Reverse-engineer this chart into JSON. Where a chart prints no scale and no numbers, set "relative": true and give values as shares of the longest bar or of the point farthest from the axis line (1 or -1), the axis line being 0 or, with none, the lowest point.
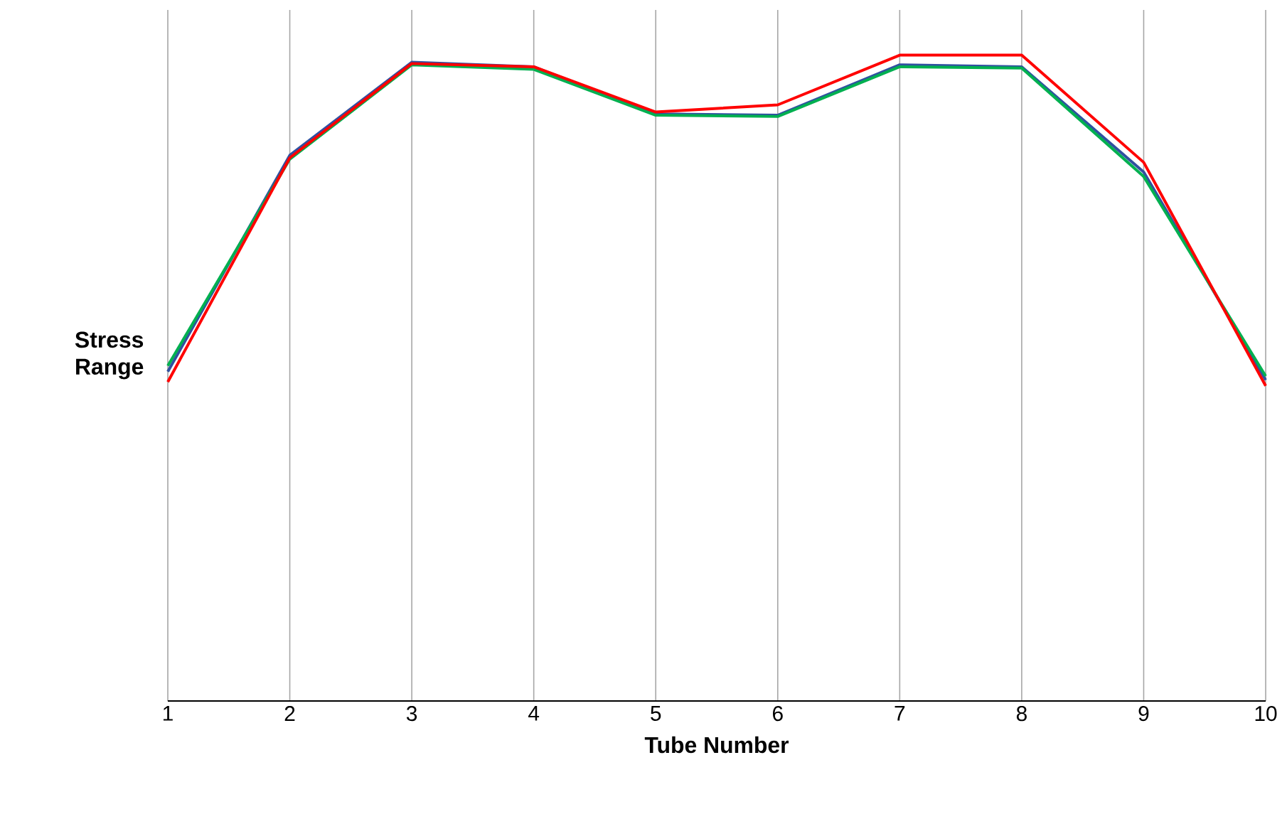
{
  "chart_data": {
    "type": "line",
    "xlabel": "Tube Number",
    "ylabel": "Stress Range",
    "relative": true,
    "grid": true,
    "marker": "none",
    "line_style": "solid",
    "x": [
      1,
      2,
      3,
      4,
      5,
      6,
      7,
      8,
      9,
      10
    ],
    "xlim": [
      1,
      10
    ],
    "xticks": [
      1,
      2,
      3,
      4,
      5,
      6,
      7,
      8,
      9,
      10
    ],
    "series": [
      {
        "color": "#3050a0",
        "values": [
          0.51,
          0.845,
          0.989,
          0.982,
          0.909,
          0.907,
          0.985,
          0.982,
          0.819,
          0.497
        ]
      },
      {
        "color": "#00b050",
        "values": [
          0.519,
          0.839,
          0.985,
          0.978,
          0.907,
          0.905,
          0.982,
          0.98,
          0.812,
          0.503
        ]
      },
      {
        "color": "#ff0000",
        "values": [
          0.494,
          0.841,
          0.987,
          0.982,
          0.912,
          0.923,
          1,
          1,
          0.834,
          0.488
        ]
      }
    ]
  }
}
